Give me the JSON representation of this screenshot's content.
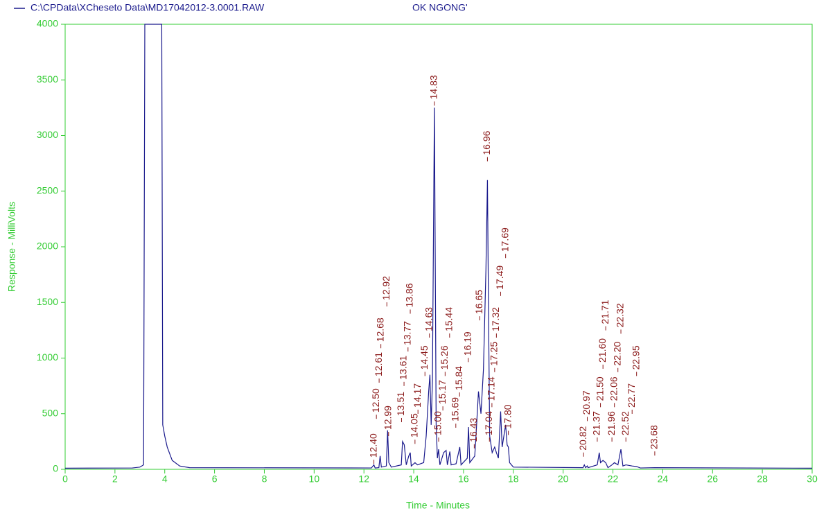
{
  "chart_data": {
    "type": "line",
    "file": "C:\\CPData\\XCheseto Data\\MD17042012-3.0001.RAW",
    "title": "OK NGONG'",
    "x_label": "Time - Minutes",
    "y_label": "Response - MilliVolts",
    "xlim": [
      0,
      30
    ],
    "ylim": [
      0,
      4000
    ],
    "xticks": [
      0,
      2,
      4,
      6,
      8,
      10,
      12,
      14,
      16,
      18,
      20,
      22,
      24,
      26,
      28,
      30
    ],
    "yticks": [
      0,
      500,
      1000,
      1500,
      2000,
      2500,
      3000,
      3500,
      4000
    ],
    "axis_color": "#33cc33",
    "series": [
      {
        "name": "C:\\CPData\\XCheseto Data\\MD17042012-3.0001.RAW",
        "color": "#1a1a8c",
        "x": [
          0,
          2.7,
          3.0,
          3.15,
          3.2,
          3.88,
          3.92,
          4.0,
          4.1,
          4.3,
          4.6,
          5,
          12.3,
          12.4,
          12.45,
          12.6,
          12.65,
          12.7,
          12.9,
          12.95,
          13.0,
          13.1,
          13.5,
          13.55,
          13.62,
          13.7,
          13.8,
          13.86,
          13.9,
          14.05,
          14.15,
          14.4,
          14.5,
          14.6,
          14.65,
          14.7,
          14.75,
          14.83,
          14.9,
          14.95,
          15.0,
          15.05,
          15.2,
          15.3,
          15.35,
          15.45,
          15.5,
          15.7,
          15.85,
          15.9,
          16.15,
          16.2,
          16.25,
          16.45,
          16.5,
          16.6,
          16.7,
          16.8,
          16.9,
          16.96,
          17.0,
          17.05,
          17.15,
          17.25,
          17.32,
          17.4,
          17.49,
          17.55,
          17.69,
          17.75,
          17.8,
          17.85,
          18.0,
          20.8,
          20.85,
          20.9,
          20.97,
          21.0,
          21.37,
          21.45,
          21.5,
          21.6,
          21.71,
          21.8,
          21.96,
          22.06,
          22.2,
          22.32,
          22.4,
          22.52,
          22.77,
          22.95,
          23.1,
          23.68,
          30
        ],
        "values": [
          10,
          12,
          20,
          40,
          4000,
          4000,
          400,
          300,
          200,
          80,
          30,
          15,
          12,
          40,
          12,
          15,
          120,
          20,
          30,
          350,
          60,
          20,
          40,
          250,
          220,
          40,
          120,
          150,
          30,
          60,
          40,
          60,
          300,
          700,
          850,
          400,
          800,
          3250,
          400,
          100,
          180,
          40,
          150,
          170,
          40,
          160,
          40,
          50,
          200,
          40,
          100,
          380,
          60,
          120,
          300,
          700,
          500,
          900,
          1800,
          2600,
          1500,
          300,
          150,
          200,
          150,
          100,
          520,
          200,
          400,
          220,
          200,
          60,
          20,
          15,
          40,
          15,
          30,
          15,
          40,
          150,
          60,
          80,
          60,
          15,
          40,
          60,
          40,
          180,
          30,
          40,
          30,
          25,
          12,
          15,
          10
        ]
      }
    ],
    "peak_color": "#8b1a1a",
    "peaks": [
      {
        "label": "12.40",
        "x": 12.4,
        "height": 30
      },
      {
        "label": "12.50",
        "x": 12.5,
        "height": 435
      },
      {
        "label": "12.61",
        "x": 12.61,
        "height": 760
      },
      {
        "label": "12.68",
        "x": 12.68,
        "height": 1070
      },
      {
        "label": "12.92",
        "x": 12.92,
        "height": 1445
      },
      {
        "label": "12.99",
        "x": 12.99,
        "height": 280
      },
      {
        "label": "13.51",
        "x": 13.51,
        "height": 405
      },
      {
        "label": "13.61",
        "x": 13.61,
        "height": 730
      },
      {
        "label": "13.77",
        "x": 13.77,
        "height": 1040
      },
      {
        "label": "13.86",
        "x": 13.86,
        "height": 1380
      },
      {
        "label": "14.05",
        "x": 14.05,
        "height": 210
      },
      {
        "label": "14.17",
        "x": 14.17,
        "height": 480
      },
      {
        "label": "14.45",
        "x": 14.45,
        "height": 820
      },
      {
        "label": "14.63",
        "x": 14.63,
        "height": 1165
      },
      {
        "label": "14.83",
        "x": 14.83,
        "height": 3250
      },
      {
        "label": "15.00",
        "x": 15.0,
        "height": 230
      },
      {
        "label": "15.17",
        "x": 15.17,
        "height": 510
      },
      {
        "label": "15.26",
        "x": 15.26,
        "height": 820
      },
      {
        "label": "15.44",
        "x": 15.44,
        "height": 1165
      },
      {
        "label": "15.69",
        "x": 15.69,
        "height": 355
      },
      {
        "label": "15.84",
        "x": 15.84,
        "height": 635
      },
      {
        "label": "16.19",
        "x": 16.19,
        "height": 945
      },
      {
        "label": "16.43",
        "x": 16.43,
        "height": 170
      },
      {
        "label": "16.65",
        "x": 16.65,
        "height": 1320
      },
      {
        "label": "16.96",
        "x": 16.96,
        "height": 2750
      },
      {
        "label": "17.04",
        "x": 17.04,
        "height": 230
      },
      {
        "label": "17.14",
        "x": 17.14,
        "height": 540
      },
      {
        "label": "17.25",
        "x": 17.25,
        "height": 855
      },
      {
        "label": "17.32",
        "x": 17.32,
        "height": 1165
      },
      {
        "label": "17.49",
        "x": 17.49,
        "height": 1540
      },
      {
        "label": "17.69",
        "x": 17.69,
        "height": 1880
      },
      {
        "label": "17.80",
        "x": 17.8,
        "height": 290
      },
      {
        "label": "20.82",
        "x": 20.82,
        "height": 95
      },
      {
        "label": "20.97",
        "x": 20.97,
        "height": 415
      },
      {
        "label": "21.37",
        "x": 21.37,
        "height": 230
      },
      {
        "label": "21.50",
        "x": 21.5,
        "height": 540
      },
      {
        "label": "21.60",
        "x": 21.6,
        "height": 885
      },
      {
        "label": "21.71",
        "x": 21.71,
        "height": 1230
      },
      {
        "label": "21.96",
        "x": 21.96,
        "height": 230
      },
      {
        "label": "22.06",
        "x": 22.06,
        "height": 540
      },
      {
        "label": "22.20",
        "x": 22.2,
        "height": 855
      },
      {
        "label": "22.32",
        "x": 22.32,
        "height": 1200
      },
      {
        "label": "22.52",
        "x": 22.52,
        "height": 230
      },
      {
        "label": "22.77",
        "x": 22.77,
        "height": 480
      },
      {
        "label": "22.95",
        "x": 22.95,
        "height": 820
      },
      {
        "label": "23.68",
        "x": 23.68,
        "height": 105
      }
    ]
  }
}
